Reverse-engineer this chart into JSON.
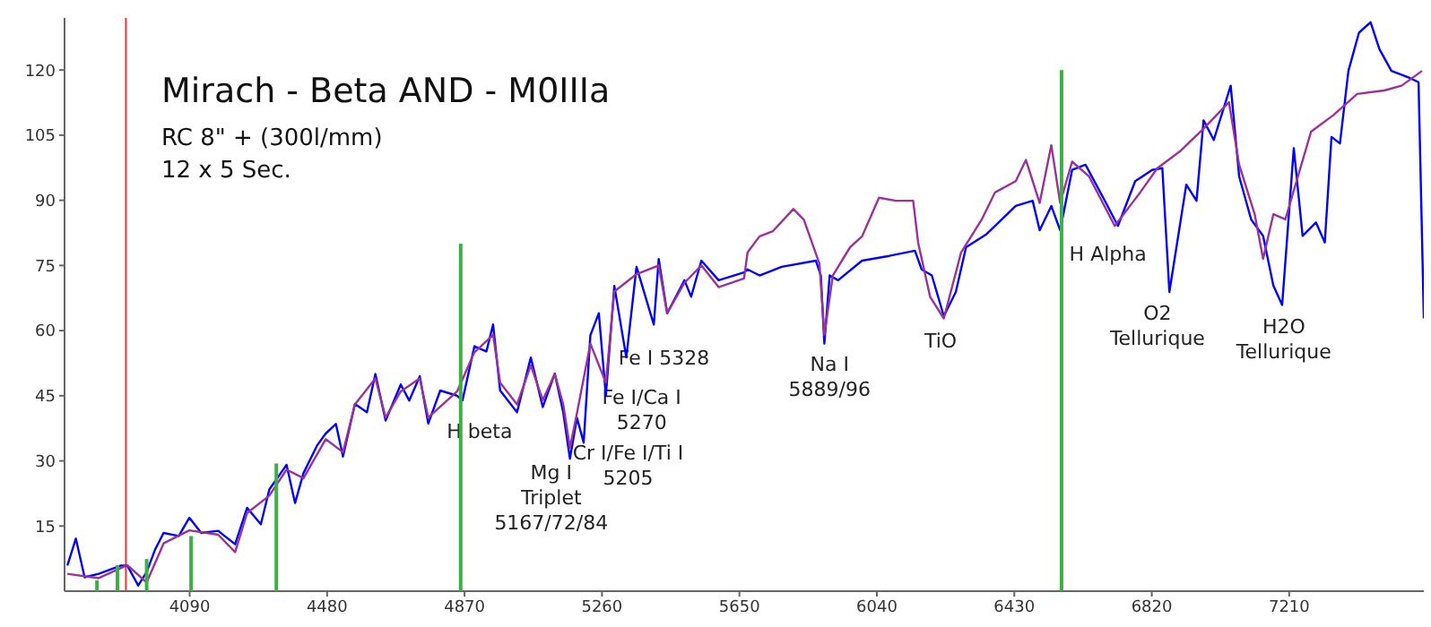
{
  "chart_data": {
    "type": "line",
    "title": "Mirach - Beta AND - M0IIIa",
    "subtitle": "RC 8\" + (300l/mm)",
    "marker": "none",
    "xlim": [
      3735,
      7592
    ],
    "ylim": [
      0,
      132
    ],
    "xticks": [
      4090,
      4480,
      4870,
      5260,
      5650,
      6040,
      6430,
      6820,
      7210
    ],
    "yticks": [
      15,
      30,
      45,
      60,
      75,
      90,
      105,
      120
    ],
    "series": [
      {
        "color": "#0000ff",
        "x": [
          3743,
          3767,
          3792,
          3832,
          3895,
          3913,
          3944,
          3968,
          3992,
          4016,
          4059,
          4089,
          4123,
          4171,
          4219,
          4253,
          4292,
          4316,
          4365,
          4389,
          4413,
          4452,
          4476,
          4505,
          4525,
          4559,
          4593,
          4617,
          4646,
          4689,
          4713,
          4743,
          4767,
          4801,
          4849,
          4864,
          4898,
          4932,
          4951,
          4971,
          5019,
          5058,
          5092,
          5126,
          5150,
          5169,
          5189,
          5208,
          5227,
          5251,
          5271,
          5295,
          5329,
          5358,
          5407,
          5421,
          5445,
          5494,
          5513,
          5542,
          5591,
          5663,
          5673,
          5707,
          5770,
          5867,
          5881,
          5891,
          5906,
          5930,
          5998,
          6075,
          6148,
          6167,
          6196,
          6230,
          6264,
          6293,
          6351,
          6434,
          6482,
          6502,
          6535,
          6560,
          6594,
          6632,
          6690,
          6724,
          6773,
          6821,
          6850,
          6870,
          6918,
          6947,
          6967,
          6996,
          7044,
          7068,
          7102,
          7136,
          7165,
          7190,
          7223,
          7248,
          7286,
          7311,
          7330,
          7354,
          7378,
          7408,
          7441,
          7466,
          7500,
          7548,
          7577,
          7592
        ],
        "values": [
          5.9,
          12.1,
          3.2,
          4,
          5.9,
          5.9,
          1.3,
          4.4,
          9.6,
          13.4,
          12.7,
          16.9,
          13.4,
          13.9,
          10.8,
          19.2,
          15.4,
          23.4,
          29.1,
          20.3,
          27.2,
          33.6,
          36.3,
          38.5,
          31,
          43.1,
          41.2,
          50,
          39.3,
          47.6,
          43.9,
          49.5,
          38.6,
          46.2,
          45,
          43.9,
          56.4,
          55.2,
          61.4,
          46.2,
          41.2,
          53.8,
          42.4,
          50.1,
          41.2,
          30.5,
          39.9,
          34.2,
          58.9,
          64,
          45,
          70.3,
          53.8,
          74.7,
          61.4,
          76.5,
          64,
          71.6,
          67.8,
          76.1,
          71.6,
          73.4,
          74.1,
          72.7,
          74.7,
          76.1,
          72.7,
          57,
          72.7,
          71.6,
          76.1,
          77.2,
          78.4,
          74.1,
          72.7,
          63.3,
          68.9,
          79.2,
          82.2,
          88.7,
          89.9,
          83.1,
          88.7,
          83.1,
          97,
          98.2,
          89.4,
          84.1,
          94.4,
          97,
          97.4,
          68.9,
          93.6,
          89.9,
          108.4,
          103.9,
          116.4,
          95.5,
          85.6,
          81.8,
          70.4,
          65.9,
          102,
          81.8,
          84.9,
          80.3,
          104.6,
          103.1,
          119.8,
          128.6,
          131,
          124.8,
          119.8,
          118.3,
          117.2,
          62.8
        ]
      },
      {
        "color": "#993399",
        "x": [
          3743,
          3832,
          3913,
          3968,
          4016,
          4089,
          4171,
          4219,
          4253,
          4316,
          4365,
          4413,
          4476,
          4525,
          4559,
          4617,
          4646,
          4689,
          4743,
          4767,
          4849,
          4898,
          4951,
          4971,
          5019,
          5058,
          5092,
          5126,
          5150,
          5169,
          5189,
          5227,
          5271,
          5295,
          5358,
          5421,
          5445,
          5494,
          5542,
          5591,
          5663,
          5673,
          5707,
          5745,
          5803,
          5833,
          5877,
          5891,
          5915,
          5964,
          5998,
          6046,
          6094,
          6143,
          6157,
          6191,
          6230,
          6279,
          6337,
          6375,
          6434,
          6463,
          6502,
          6535,
          6560,
          6594,
          6642,
          6715,
          6787,
          6836,
          6899,
          6967,
          7039,
          7068,
          7112,
          7136,
          7165,
          7199,
          7272,
          7335,
          7403,
          7480,
          7529,
          7587
        ],
        "values": [
          4,
          3,
          6,
          2,
          11,
          14,
          13,
          9,
          18,
          22,
          28,
          26,
          35,
          32,
          43,
          49,
          40,
          46,
          49,
          40,
          46,
          55,
          59,
          48,
          43,
          52,
          44,
          50,
          43,
          33,
          41,
          57,
          48,
          69,
          73,
          75,
          64,
          71,
          75,
          70,
          72,
          78,
          81.7,
          82.9,
          88,
          85.5,
          75.4,
          59,
          72.7,
          79.2,
          81.7,
          90.6,
          89.9,
          89.9,
          80.3,
          67.8,
          62.8,
          78,
          85.5,
          91.8,
          94.4,
          99.3,
          89.4,
          102.7,
          89.4,
          98.9,
          95.5,
          84.1,
          91.8,
          97.4,
          101.2,
          106.5,
          112.6,
          98.2,
          86.8,
          76.5,
          86.8,
          85.6,
          105.8,
          109.6,
          114.5,
          115.3,
          116.4,
          119.8
        ]
      },
      {
        "type": "bar",
        "color": "#3cb043",
        "x": [
          3827,
          3885,
          3968,
          4094,
          4336,
          4859,
          6564
        ],
        "values": [
          2.5,
          6,
          7.4,
          12.7,
          29.4,
          80,
          120
        ]
      }
    ],
    "ref_lines": [
      {
        "axis": "x",
        "value": 3909,
        "color": "#ff3030"
      }
    ],
    "annotations": [
      "12 x 5 Sec.",
      "H beta",
      "Mg I\nTriplet\n5167/72/84",
      "Cr I/Fe I/Ti I\n5205",
      "Fe I/Ca I\n5270",
      "Fe I 5328",
      "Na I\n5889/96",
      "TiO",
      "H Alpha",
      "O2\nTellurique",
      "H2O\nTellurique"
    ]
  }
}
